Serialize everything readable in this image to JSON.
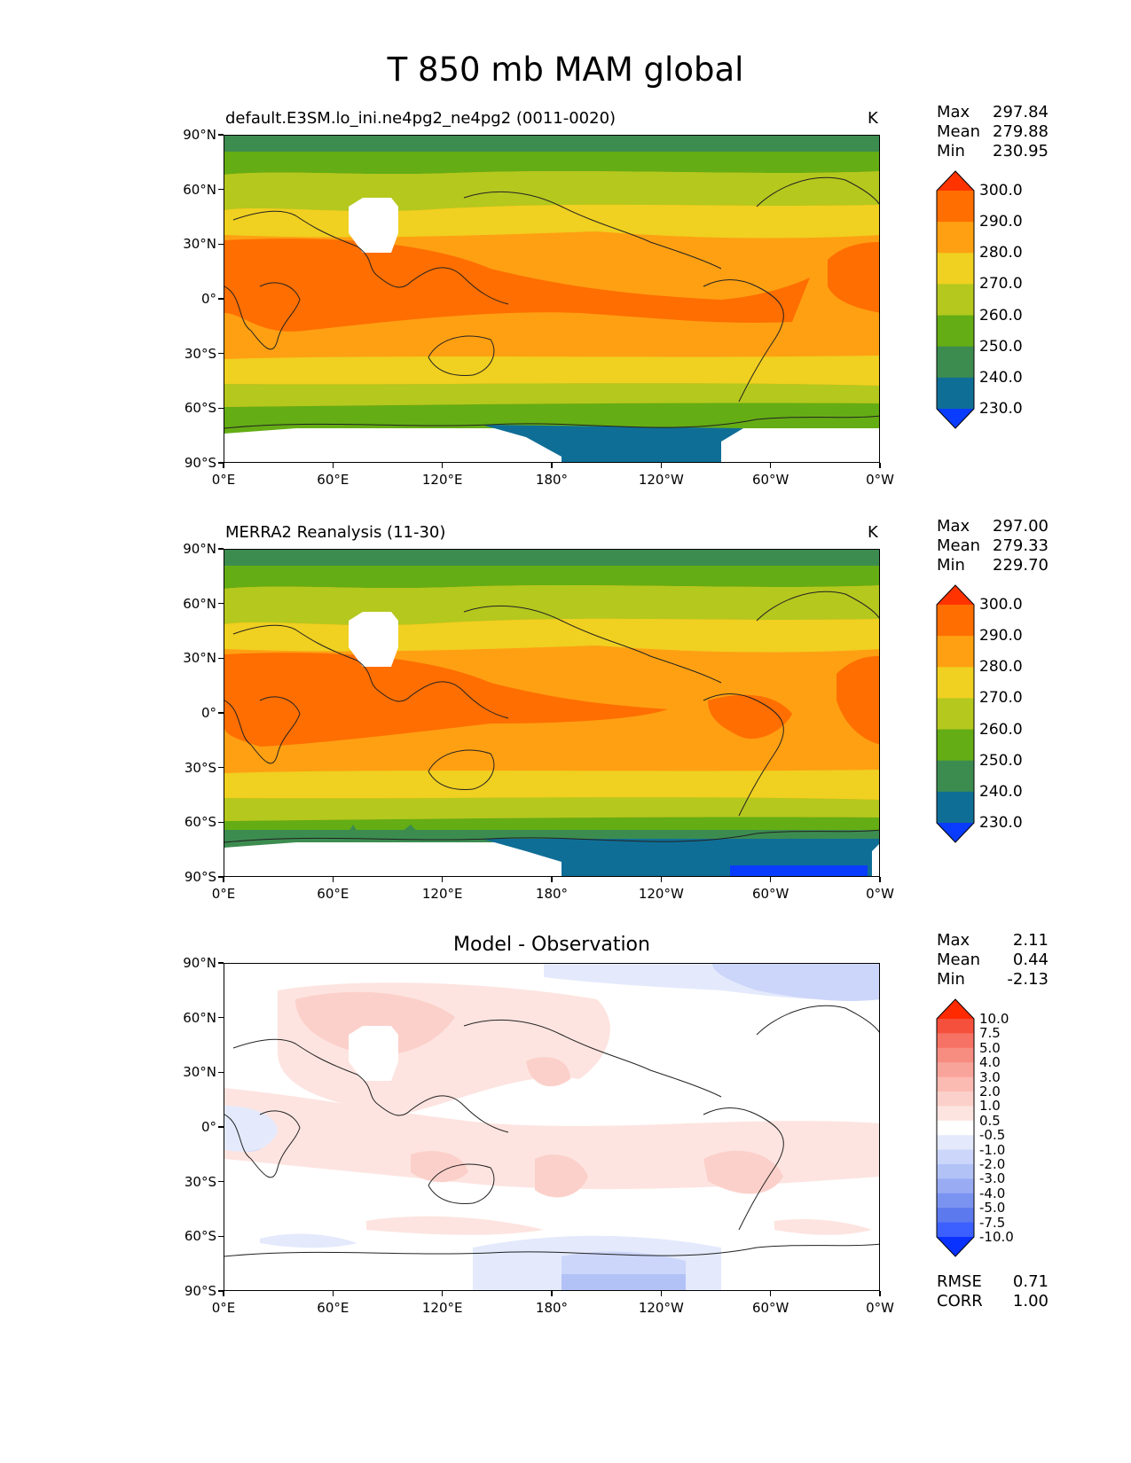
{
  "title": "T 850 mb MAM global",
  "panels": [
    {
      "id": "model",
      "left_label": "default.E3SM.lo_ini.ne4pg2_ne4pg2 (0011-0020)",
      "right_label": "K",
      "stats": [
        {
          "key": "Max",
          "value": "297.84"
        },
        {
          "key": "Mean",
          "value": "279.88"
        },
        {
          "key": "Min",
          "value": "230.95"
        }
      ]
    },
    {
      "id": "obs",
      "left_label": "MERRA2 Reanalysis (11-30)",
      "right_label": "K",
      "stats": [
        {
          "key": "Max",
          "value": "297.00"
        },
        {
          "key": "Mean",
          "value": "279.33"
        },
        {
          "key": "Min",
          "value": "229.70"
        }
      ]
    },
    {
      "id": "diff",
      "center_label": "Model - Observation",
      "stats": [
        {
          "key": "Max",
          "value": "2.11"
        },
        {
          "key": "Mean",
          "value": "0.44"
        },
        {
          "key": "Min",
          "value": "-2.13"
        }
      ],
      "metrics": [
        {
          "key": "RMSE",
          "value": "0.71"
        },
        {
          "key": "CORR",
          "value": "1.00"
        }
      ]
    }
  ],
  "axes": {
    "y_ticks": [
      "90°N",
      "60°N",
      "30°N",
      "0°",
      "30°S",
      "60°S",
      "90°S"
    ],
    "x_ticks": [
      "0°E",
      "60°E",
      "120°E",
      "180°",
      "120°W",
      "60°W",
      "0°W"
    ]
  },
  "colorbar_temp": {
    "labels": [
      "300.0",
      "290.0",
      "280.0",
      "270.0",
      "260.0",
      "250.0",
      "240.0",
      "230.0"
    ],
    "colors": [
      "#ff3300",
      "#ff6e00",
      "#ffa012",
      "#f0d020",
      "#b4c81e",
      "#64ad14",
      "#3c8c50",
      "#0f6e96",
      "#0a3cff"
    ]
  },
  "colorbar_diff": {
    "labels": [
      "10.0",
      "7.5",
      "5.0",
      "4.0",
      "3.0",
      "2.0",
      "1.0",
      "0.5",
      "-0.5",
      "-1.0",
      "-2.0",
      "-3.0",
      "-4.0",
      "-5.0",
      "-7.5",
      "-10.0"
    ],
    "colors": [
      "#ff2a00",
      "#f5503c",
      "#f57264",
      "#f78c80",
      "#f9a49a",
      "#fbbab2",
      "#fcd0ca",
      "#fde4e0",
      "#ffffff",
      "#e4eafc",
      "#ccd6fa",
      "#b2c2f7",
      "#98abf3",
      "#7b93f0",
      "#5c79ee",
      "#3c5fff",
      "#0a32ff"
    ]
  }
}
